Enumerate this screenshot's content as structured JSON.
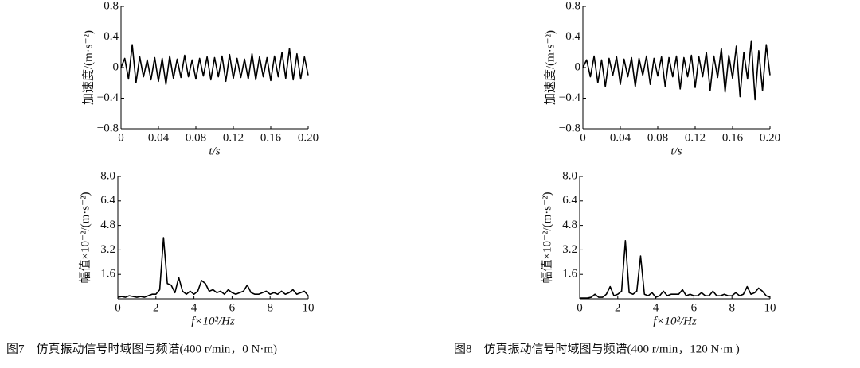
{
  "captions": [
    "图7　仿真振动信号时域图与频谱(400 r/min，0 N·m)",
    "图8　仿真振动信号时域图与频谱(400 r/min，120 N·m )"
  ],
  "chart_data": [
    {
      "type": "line",
      "xlabel": "t/s",
      "ylabel": "加速度/(m·s⁻²)",
      "color": "#000000",
      "x": [
        0,
        0.004,
        0.008,
        0.012,
        0.016,
        0.02,
        0.024,
        0.028,
        0.032,
        0.036,
        0.04,
        0.044,
        0.048,
        0.052,
        0.056,
        0.06,
        0.064,
        0.068,
        0.072,
        0.076,
        0.08,
        0.084,
        0.088,
        0.092,
        0.096,
        0.1,
        0.104,
        0.108,
        0.112,
        0.116,
        0.12,
        0.124,
        0.128,
        0.132,
        0.136,
        0.14,
        0.144,
        0.148,
        0.152,
        0.156,
        0.16,
        0.164,
        0.168,
        0.172,
        0.176,
        0.18,
        0.184,
        0.188,
        0.192,
        0.196,
        0.2
      ],
      "values": [
        0,
        0.12,
        -0.15,
        0.3,
        -0.2,
        0.14,
        -0.12,
        0.1,
        -0.16,
        0.13,
        -0.18,
        0.12,
        -0.22,
        0.15,
        -0.14,
        0.11,
        -0.13,
        0.16,
        -0.12,
        0.1,
        -0.15,
        0.12,
        -0.11,
        0.14,
        -0.16,
        0.13,
        -0.12,
        0.15,
        -0.18,
        0.17,
        -0.14,
        0.12,
        -0.13,
        0.11,
        -0.15,
        0.18,
        -0.16,
        0.14,
        -0.12,
        0.13,
        -0.17,
        0.15,
        -0.12,
        0.2,
        -0.14,
        0.25,
        -0.16,
        0.18,
        -0.15,
        0.14,
        -0.1
      ],
      "xlim": [
        0,
        0.2
      ],
      "ylim": [
        -0.8,
        0.8
      ],
      "xticks": [
        0,
        0.04,
        0.08,
        0.12,
        0.16,
        {
          "value": 0.2,
          "label": "0.20"
        }
      ],
      "yticks": [
        {
          "value": -0.8,
          "label": "−0.8"
        },
        {
          "value": -0.4,
          "label": "−0.4"
        },
        0,
        0.4,
        0.8
      ]
    },
    {
      "type": "line",
      "xlabel": "t/s",
      "ylabel": "加速度/(m·s⁻²)",
      "color": "#000000",
      "x": [
        0,
        0.004,
        0.008,
        0.012,
        0.016,
        0.02,
        0.024,
        0.028,
        0.032,
        0.036,
        0.04,
        0.044,
        0.048,
        0.052,
        0.056,
        0.06,
        0.064,
        0.068,
        0.072,
        0.076,
        0.08,
        0.084,
        0.088,
        0.092,
        0.096,
        0.1,
        0.104,
        0.108,
        0.112,
        0.116,
        0.12,
        0.124,
        0.128,
        0.132,
        0.136,
        0.14,
        0.144,
        0.148,
        0.152,
        0.156,
        0.16,
        0.164,
        0.168,
        0.172,
        0.176,
        0.18,
        0.184,
        0.188,
        0.192,
        0.196,
        0.2
      ],
      "values": [
        0,
        0.1,
        -0.12,
        0.15,
        -0.2,
        0.1,
        -0.25,
        0.12,
        -0.1,
        0.14,
        -0.22,
        0.11,
        -0.12,
        0.13,
        -0.25,
        0.12,
        -0.1,
        0.15,
        -0.22,
        0.12,
        -0.11,
        0.14,
        -0.25,
        0.13,
        -0.12,
        0.15,
        -0.28,
        0.13,
        -0.12,
        0.16,
        -0.26,
        0.14,
        -0.12,
        0.2,
        -0.3,
        0.15,
        -0.13,
        0.25,
        -0.32,
        0.16,
        -0.14,
        0.28,
        -0.38,
        0.2,
        -0.15,
        0.35,
        -0.42,
        0.22,
        -0.3,
        0.3,
        -0.1
      ],
      "xlim": [
        0,
        0.2
      ],
      "ylim": [
        -0.8,
        0.8
      ],
      "xticks": [
        0,
        0.04,
        0.08,
        0.12,
        0.16,
        {
          "value": 0.2,
          "label": "0.20"
        }
      ],
      "yticks": [
        {
          "value": -0.8,
          "label": "−0.8"
        },
        {
          "value": -0.4,
          "label": "−0.4"
        },
        0,
        0.4,
        0.8
      ]
    },
    {
      "type": "line",
      "xlabel": "f×10²/Hz",
      "ylabel": "幅值×10⁻²/(m·s⁻²)",
      "color": "#000000",
      "x": [
        0,
        0.2,
        0.4,
        0.6,
        0.8,
        1,
        1.2,
        1.4,
        1.6,
        1.8,
        2,
        2.2,
        2.4,
        2.6,
        2.8,
        3,
        3.2,
        3.4,
        3.6,
        3.8,
        4,
        4.2,
        4.4,
        4.6,
        4.8,
        5,
        5.2,
        5.4,
        5.6,
        5.8,
        6,
        6.2,
        6.4,
        6.6,
        6.8,
        7,
        7.2,
        7.4,
        7.6,
        7.8,
        8,
        8.2,
        8.4,
        8.6,
        8.8,
        9,
        9.2,
        9.4,
        9.6,
        9.8,
        10
      ],
      "values": [
        0.1,
        0.15,
        0.1,
        0.2,
        0.15,
        0.1,
        0.15,
        0.1,
        0.2,
        0.3,
        0.3,
        0.6,
        4.0,
        1.0,
        0.9,
        0.4,
        1.4,
        0.5,
        0.3,
        0.5,
        0.3,
        0.5,
        1.2,
        1.0,
        0.5,
        0.6,
        0.4,
        0.5,
        0.3,
        0.6,
        0.4,
        0.3,
        0.4,
        0.5,
        0.9,
        0.4,
        0.3,
        0.3,
        0.4,
        0.5,
        0.3,
        0.4,
        0.3,
        0.5,
        0.3,
        0.4,
        0.6,
        0.3,
        0.4,
        0.5,
        0.2
      ],
      "xlim": [
        0,
        10
      ],
      "ylim": [
        0,
        8
      ],
      "xticks": [
        0,
        2,
        4,
        6,
        8,
        10
      ],
      "yticks": [
        1.6,
        3.2,
        4.8,
        6.4,
        {
          "value": 8,
          "label": "8.0"
        }
      ]
    },
    {
      "type": "line",
      "xlabel": "f×10²/Hz",
      "ylabel": "幅值×10⁻²/(m·s⁻²)",
      "color": "#000000",
      "x": [
        0,
        0.2,
        0.4,
        0.6,
        0.8,
        1,
        1.2,
        1.4,
        1.6,
        1.8,
        2,
        2.2,
        2.4,
        2.6,
        2.8,
        3,
        3.2,
        3.4,
        3.6,
        3.8,
        4,
        4.2,
        4.4,
        4.6,
        4.8,
        5,
        5.2,
        5.4,
        5.6,
        5.8,
        6,
        6.2,
        6.4,
        6.6,
        6.8,
        7,
        7.2,
        7.4,
        7.6,
        7.8,
        8,
        8.2,
        8.4,
        8.6,
        8.8,
        9,
        9.2,
        9.4,
        9.6,
        9.8,
        10
      ],
      "values": [
        0.05,
        0.05,
        0.05,
        0.1,
        0.3,
        0.1,
        0.1,
        0.3,
        0.8,
        0.2,
        0.3,
        0.5,
        3.8,
        0.4,
        0.3,
        0.5,
        2.8,
        0.3,
        0.2,
        0.4,
        0.1,
        0.2,
        0.5,
        0.2,
        0.3,
        0.3,
        0.3,
        0.6,
        0.2,
        0.3,
        0.2,
        0.2,
        0.4,
        0.2,
        0.2,
        0.5,
        0.2,
        0.2,
        0.3,
        0.2,
        0.2,
        0.4,
        0.2,
        0.3,
        0.8,
        0.3,
        0.4,
        0.7,
        0.5,
        0.2,
        0.1
      ],
      "xlim": [
        0,
        10
      ],
      "ylim": [
        0,
        8
      ],
      "xticks": [
        0,
        2,
        4,
        6,
        8,
        10
      ],
      "yticks": [
        1.6,
        3.2,
        4.8,
        6.4,
        {
          "value": 8,
          "label": "8.0"
        }
      ]
    }
  ]
}
